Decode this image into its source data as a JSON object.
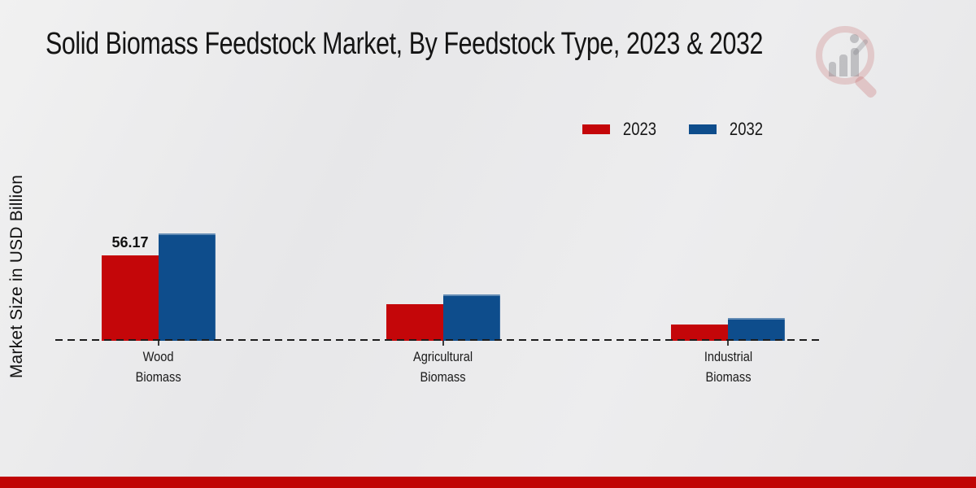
{
  "title": "Solid Biomass Feedstock Market, By Feedstock Type, 2023 & 2032",
  "y_axis_label": "Market Size in USD Billion",
  "legend": {
    "position": "top-right",
    "items": [
      {
        "label": "2023",
        "color": "#c40609"
      },
      {
        "label": "2032",
        "color": "#0e4d8c"
      }
    ]
  },
  "watermark_icon": "magnifier-bar-chart-logo",
  "footer_band_color": "#c00505",
  "accent_red": "#c40609",
  "accent_blue": "#0e4d8c",
  "chart_data": {
    "type": "bar",
    "title": "Solid Biomass Feedstock Market, By Feedstock Type, 2023 & 2032",
    "xlabel": "",
    "ylabel": "Market Size in USD Billion",
    "categories": [
      "Wood Biomass",
      "Agricultural Biomass",
      "Industrial Biomass"
    ],
    "series": [
      {
        "name": "2023",
        "color": "#c40609",
        "values": [
          56.17,
          24.1,
          10.7
        ],
        "data_labels": [
          "56.17",
          null,
          null
        ]
      },
      {
        "name": "2032",
        "color": "#0e4d8c",
        "values": [
          70.5,
          30.1,
          15.0
        ],
        "data_labels": [
          null,
          null,
          null
        ]
      }
    ],
    "ylim": [
      0,
      90
    ],
    "grid": false,
    "axis_style": "dashed-baseline-only",
    "legend_position": "top-right"
  }
}
